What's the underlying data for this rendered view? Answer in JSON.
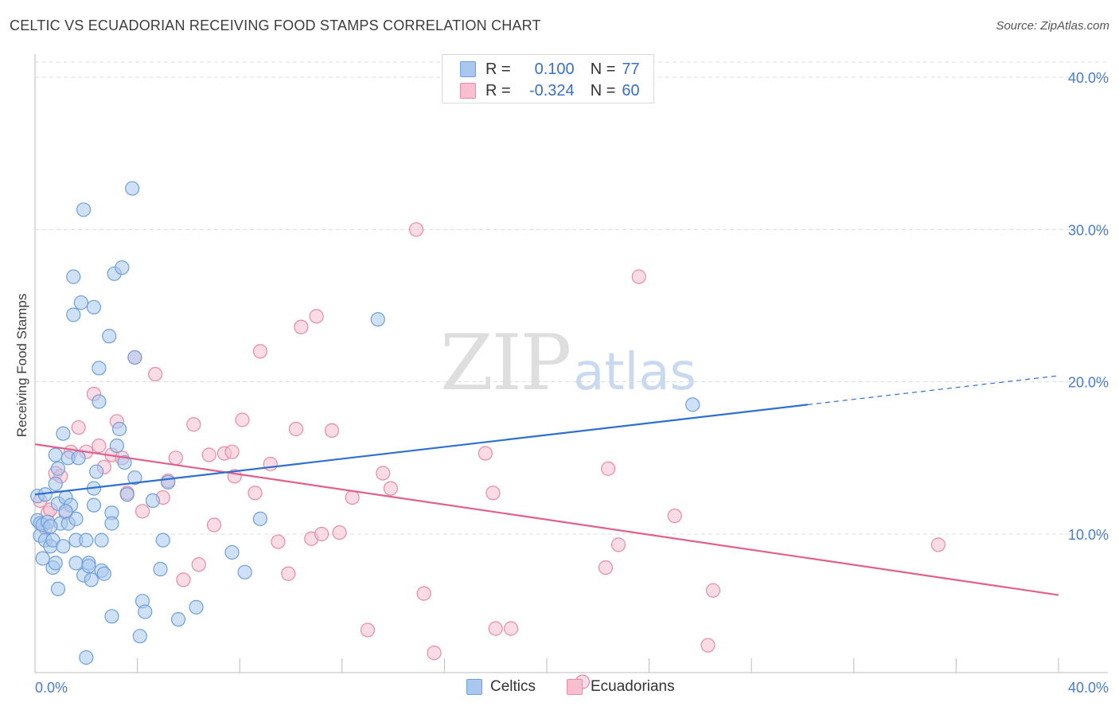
{
  "title": "CELTIC VS ECUADORIAN RECEIVING FOOD STAMPS CORRELATION CHART",
  "source": "Source: ZipAtlas.com",
  "watermark": {
    "left": "ZIP",
    "right": "atlas"
  },
  "legend": {
    "rows": [
      {
        "r_label": "R =",
        "r_value": "0.100",
        "n_label": "N =",
        "n_value": "77"
      },
      {
        "r_label": "R =",
        "r_value": "-0.324",
        "n_label": "N =",
        "n_value": "60"
      }
    ]
  },
  "colors": {
    "blue_fill": "#a8c8f0",
    "blue_stroke": "#6f9fd8",
    "blue_line": "#2f6fce",
    "pink_fill": "#f7bfd0",
    "pink_stroke": "#e88aa8",
    "pink_line": "#e0608e",
    "grid": "#dcdcdc",
    "tick_text": "#4a7cc9"
  },
  "chart_data": {
    "type": "scatter",
    "title": "CELTIC VS ECUADORIAN RECEIVING FOOD STAMPS CORRELATION CHART",
    "xlabel": "",
    "ylabel": "Receiving Food Stamps",
    "xlim": [
      0,
      40
    ],
    "ylim": [
      0,
      40
    ],
    "x_tick_labels": [
      "0.0%",
      "40.0%"
    ],
    "y_tick_labels": [
      "10.0%",
      "20.0%",
      "30.0%",
      "40.0%"
    ],
    "y_ticks": [
      10,
      20,
      30,
      40
    ],
    "series": [
      {
        "name": "Celtics",
        "r": 0.1,
        "n": 77,
        "trend": {
          "x": [
            0,
            30.2
          ],
          "y": [
            12.6,
            18.5
          ],
          "dashed_to": [
            40,
            20.4
          ]
        },
        "points": [
          [
            0.1,
            12.5
          ],
          [
            0.1,
            10.9
          ],
          [
            0.2,
            9.9
          ],
          [
            0.2,
            10.7
          ],
          [
            0.3,
            8.4
          ],
          [
            0.3,
            10.6
          ],
          [
            0.4,
            9.6
          ],
          [
            0.5,
            10.8
          ],
          [
            0.6,
            9.2
          ],
          [
            0.7,
            9.6
          ],
          [
            0.7,
            7.8
          ],
          [
            0.8,
            8.1
          ],
          [
            0.8,
            13.3
          ],
          [
            0.8,
            15.2
          ],
          [
            0.9,
            12.0
          ],
          [
            0.9,
            6.4
          ],
          [
            1.0,
            10.7
          ],
          [
            1.1,
            16.6
          ],
          [
            1.1,
            9.2
          ],
          [
            1.2,
            12.4
          ],
          [
            1.3,
            10.7
          ],
          [
            1.3,
            15.0
          ],
          [
            1.4,
            11.9
          ],
          [
            1.5,
            26.9
          ],
          [
            1.5,
            24.4
          ],
          [
            1.6,
            11.0
          ],
          [
            1.6,
            9.6
          ],
          [
            1.6,
            8.1
          ],
          [
            1.7,
            15.0
          ],
          [
            1.8,
            25.2
          ],
          [
            1.9,
            7.3
          ],
          [
            1.9,
            31.3
          ],
          [
            2.0,
            9.6
          ],
          [
            2.1,
            8.1
          ],
          [
            2.1,
            7.9
          ],
          [
            2.2,
            7.0
          ],
          [
            2.3,
            24.9
          ],
          [
            2.3,
            13.0
          ],
          [
            2.4,
            14.1
          ],
          [
            2.5,
            18.7
          ],
          [
            2.5,
            20.9
          ],
          [
            2.6,
            9.6
          ],
          [
            2.6,
            7.6
          ],
          [
            2.7,
            7.4
          ],
          [
            2.9,
            23.0
          ],
          [
            3.0,
            4.6
          ],
          [
            3.0,
            11.4
          ],
          [
            3.0,
            10.7
          ],
          [
            3.1,
            27.1
          ],
          [
            3.2,
            15.8
          ],
          [
            3.3,
            16.9
          ],
          [
            3.4,
            27.5
          ],
          [
            3.6,
            12.6
          ],
          [
            3.8,
            32.7
          ],
          [
            3.9,
            13.7
          ],
          [
            3.9,
            21.6
          ],
          [
            4.2,
            5.6
          ],
          [
            4.3,
            4.9
          ],
          [
            4.6,
            12.2
          ],
          [
            4.9,
            7.7
          ],
          [
            5.0,
            9.6
          ],
          [
            5.2,
            13.4
          ],
          [
            5.6,
            4.4
          ],
          [
            6.3,
            5.2
          ],
          [
            7.7,
            8.8
          ],
          [
            8.2,
            7.5
          ],
          [
            8.8,
            11.0
          ],
          [
            13.4,
            24.1
          ],
          [
            25.7,
            18.5
          ],
          [
            2.0,
            1.9
          ],
          [
            4.1,
            3.3
          ],
          [
            0.4,
            12.6
          ],
          [
            1.2,
            11.5
          ],
          [
            0.6,
            10.5
          ],
          [
            2.3,
            11.9
          ],
          [
            3.5,
            14.7
          ],
          [
            0.9,
            14.3
          ]
        ]
      },
      {
        "name": "Ecuadorians",
        "r": -0.324,
        "n": 60,
        "trend": {
          "x": [
            0,
            40
          ],
          "y": [
            15.9,
            6.0
          ]
        },
        "points": [
          [
            0.2,
            12.2
          ],
          [
            0.4,
            10.4
          ],
          [
            0.5,
            11.4
          ],
          [
            0.6,
            11.6
          ],
          [
            0.8,
            14.0
          ],
          [
            1.0,
            13.8
          ],
          [
            1.2,
            11.4
          ],
          [
            1.4,
            15.4
          ],
          [
            1.7,
            17.0
          ],
          [
            2.0,
            15.4
          ],
          [
            2.3,
            19.2
          ],
          [
            2.5,
            15.8
          ],
          [
            2.7,
            14.4
          ],
          [
            3.0,
            15.2
          ],
          [
            3.2,
            17.4
          ],
          [
            3.4,
            15.0
          ],
          [
            3.6,
            12.7
          ],
          [
            3.9,
            21.6
          ],
          [
            4.2,
            11.5
          ],
          [
            4.7,
            20.5
          ],
          [
            5.0,
            12.4
          ],
          [
            5.2,
            13.5
          ],
          [
            5.5,
            15.0
          ],
          [
            5.8,
            7.0
          ],
          [
            6.2,
            17.2
          ],
          [
            6.4,
            8.0
          ],
          [
            6.8,
            15.2
          ],
          [
            7.0,
            10.6
          ],
          [
            7.4,
            15.3
          ],
          [
            7.7,
            15.4
          ],
          [
            7.8,
            13.8
          ],
          [
            8.1,
            17.5
          ],
          [
            8.6,
            12.7
          ],
          [
            8.8,
            22.0
          ],
          [
            9.2,
            14.6
          ],
          [
            9.5,
            9.5
          ],
          [
            9.9,
            7.4
          ],
          [
            10.2,
            16.9
          ],
          [
            10.4,
            23.6
          ],
          [
            10.8,
            9.7
          ],
          [
            11.0,
            24.3
          ],
          [
            11.2,
            10.0
          ],
          [
            11.6,
            16.8
          ],
          [
            11.9,
            10.1
          ],
          [
            12.4,
            12.4
          ],
          [
            13.0,
            3.7
          ],
          [
            13.6,
            14.0
          ],
          [
            13.9,
            13.0
          ],
          [
            14.9,
            30.0
          ],
          [
            15.2,
            6.1
          ],
          [
            15.6,
            2.2
          ],
          [
            17.6,
            15.3
          ],
          [
            17.9,
            12.7
          ],
          [
            18.0,
            3.8
          ],
          [
            18.6,
            3.8
          ],
          [
            21.4,
            0.3
          ],
          [
            22.3,
            7.8
          ],
          [
            22.4,
            14.3
          ],
          [
            22.8,
            9.3
          ],
          [
            26.3,
            2.7
          ]
        ],
        "extra_points": [
          [
            23.6,
            26.9
          ],
          [
            25.0,
            11.2
          ],
          [
            26.5,
            6.3
          ],
          [
            35.3,
            9.3
          ]
        ]
      }
    ]
  },
  "bottom_legend": {
    "items": [
      "Celtics",
      "Ecuadorians"
    ]
  }
}
